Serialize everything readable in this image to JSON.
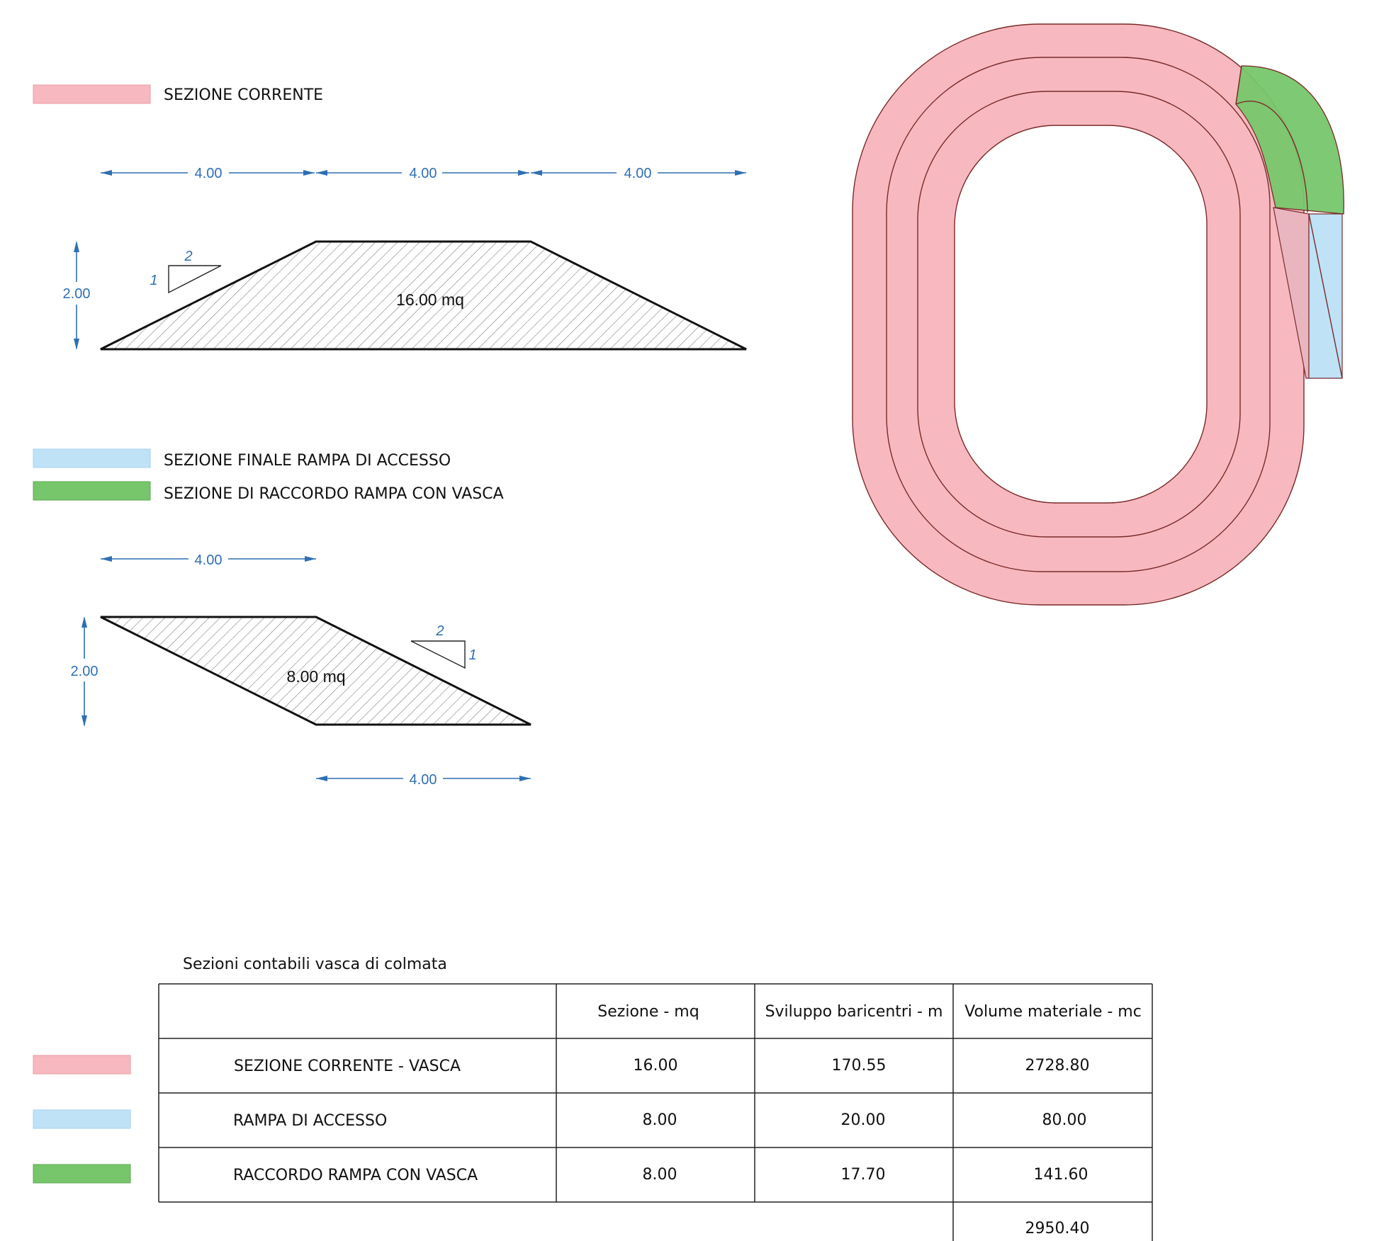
{
  "colors": {
    "corrente": "#f7b9bf",
    "rampa": "#bfe2f6",
    "raccordo": "#77c66b",
    "dimension": "#2f6fb3",
    "outline": "#7a2a2a"
  },
  "legend_top": {
    "corrente": "SEZIONE CORRENTE"
  },
  "legend_middle": {
    "rampa": "SEZIONE FINALE RAMPA DI ACCESSO",
    "raccordo": "SEZIONE DI RACCORDO RAMPA CON VASCA"
  },
  "section1": {
    "dim_top": [
      "4.00",
      "4.00",
      "4.00"
    ],
    "dim_height": "2.00",
    "slope_run": "2",
    "slope_rise": "1",
    "area": "16.00 mq"
  },
  "section2": {
    "dim_top": "4.00",
    "dim_bottom": "4.00",
    "dim_height": "2.00",
    "slope_run": "2",
    "slope_rise": "1",
    "area": "8.00 mq"
  },
  "table": {
    "title": "Sezioni contabili vasca di colmata",
    "headers": [
      "",
      "Sezione - mq",
      "Sviluppo baricentri - m",
      "Volume materiale - mc"
    ],
    "rows": [
      {
        "label": "SEZIONE CORRENTE - VASCA",
        "sezione": "16.00",
        "sviluppo": "170.55",
        "volume": "2728.80"
      },
      {
        "label": "RAMPA DI ACCESSO",
        "sezione": "8.00",
        "sviluppo": "20.00",
        "volume": "80.00"
      },
      {
        "label": "RACCORDO RAMPA CON VASCA",
        "sezione": "8.00",
        "sviluppo": "17.70",
        "volume": "141.60"
      }
    ],
    "total": "2950.40"
  }
}
